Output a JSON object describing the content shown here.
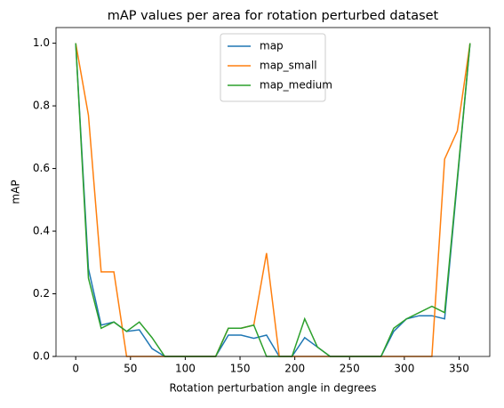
{
  "chart_data": {
    "type": "line",
    "title": "mAP values per area for rotation perturbed dataset",
    "x_label": "Rotation perturbation angle in degrees",
    "y_label": "mAP",
    "x": [
      0,
      11.61,
      23.23,
      34.84,
      46.45,
      58.06,
      69.68,
      81.29,
      92.9,
      104.52,
      116.13,
      127.74,
      139.35,
      150.97,
      162.58,
      174.19,
      185.81,
      197.42,
      209.03,
      220.65,
      232.26,
      243.87,
      255.48,
      267.1,
      278.71,
      290.32,
      301.94,
      313.55,
      325.16,
      336.77,
      348.39,
      360
    ],
    "series": [
      {
        "name": "map",
        "color": "#1f77b4",
        "values": [
          1.0,
          0.28,
          0.1,
          0.11,
          0.08,
          0.085,
          0.025,
          0,
          0,
          0,
          0,
          0,
          0.068,
          0.068,
          0.058,
          0.068,
          0,
          0,
          0.06,
          0.03,
          0,
          0,
          0,
          0,
          0,
          0.08,
          0.12,
          0.13,
          0.13,
          0.12,
          0.56,
          1.0
        ]
      },
      {
        "name": "map_small",
        "color": "#ff7f0e",
        "values": [
          1.0,
          0.77,
          0.27,
          0.27,
          0,
          0,
          0,
          0,
          0,
          0,
          0,
          0,
          0.09,
          0.09,
          0.1,
          0.33,
          0,
          0,
          0,
          0,
          0,
          0,
          0,
          0,
          0,
          0,
          0,
          0,
          0,
          0.63,
          0.72,
          1.0
        ]
      },
      {
        "name": "map_medium",
        "color": "#2ca02c",
        "values": [
          1.0,
          0.25,
          0.09,
          0.11,
          0.08,
          0.11,
          0.06,
          0,
          0,
          0,
          0,
          0,
          0.09,
          0.09,
          0.1,
          0,
          0,
          0,
          0.12,
          0.03,
          0,
          0,
          0,
          0,
          0,
          0.09,
          0.12,
          0.14,
          0.16,
          0.14,
          0.57,
          1.0
        ]
      }
    ],
    "xlim": [
      -18,
      378
    ],
    "ylim": [
      0,
      1.05
    ],
    "xticks": [
      0,
      50,
      100,
      150,
      200,
      250,
      300,
      350
    ],
    "yticks": [
      {
        "value": 0,
        "label": "0.0"
      },
      {
        "value": 0.2,
        "label": "0.2"
      },
      {
        "value": 0.4,
        "label": "0.4"
      },
      {
        "value": 0.6,
        "label": "0.6"
      },
      {
        "value": 0.8,
        "label": "0.8"
      },
      {
        "value": 1.0,
        "label": "1.0"
      }
    ],
    "legend": "upper center"
  }
}
